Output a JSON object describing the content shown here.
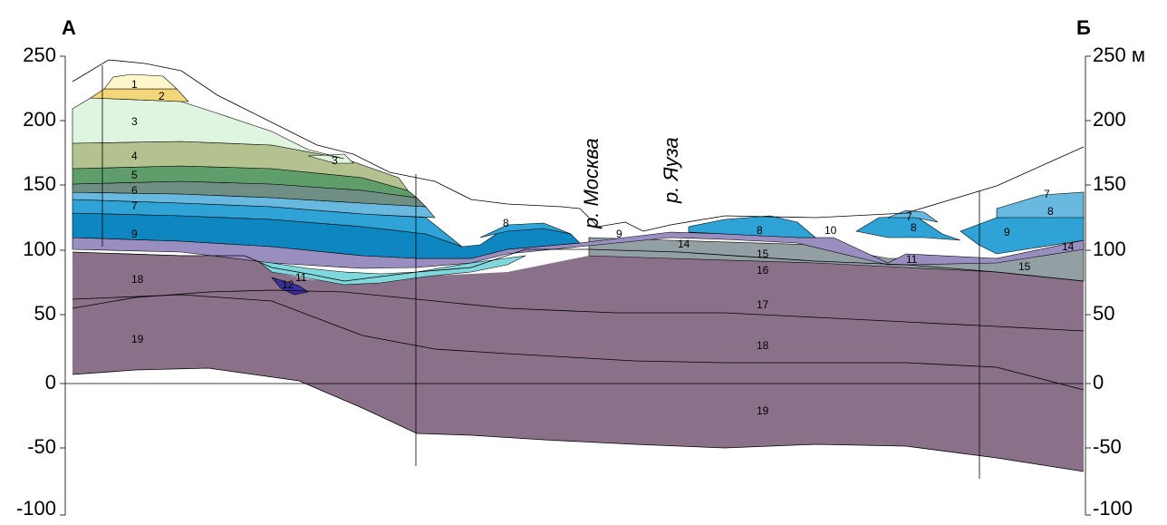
{
  "endpoints": {
    "start": "А",
    "end": "Б"
  },
  "rivers": [
    "р. Москва",
    "р. Яуза"
  ],
  "left_axis": [
    "250",
    "200",
    "150",
    "100",
    "50",
    "0",
    "-50",
    "-100"
  ],
  "right_axis": [
    "250 м",
    "200",
    "150",
    "100",
    "50",
    "0",
    "-50",
    "-100"
  ],
  "layer_numbers": [
    "1",
    "2",
    "3",
    "3",
    "4",
    "5",
    "6",
    "7",
    "9",
    "8",
    "9",
    "10",
    "8",
    "7",
    "8",
    "9",
    "7",
    "8",
    "9",
    "14",
    "14",
    "15",
    "15",
    "16",
    "11",
    "11",
    "12",
    "18",
    "19",
    "17",
    "18",
    "19"
  ],
  "colors": {
    "l1": "#fff6cc",
    "l2": "#f3d57a",
    "l3": "#e0f5e0",
    "l4": "#b4c28f",
    "l5": "#5f9e6a",
    "l6": "#6f8f84",
    "l7": "#69b8df",
    "l8": "#2fa2d6",
    "l9": "#0e86c0",
    "l10": "#9a8dc0",
    "l11": "#80d7dc",
    "l12": "#3a2f9a",
    "l14": "#8c8c98",
    "l15": "#92a0a4",
    "l17": "#8b7089",
    "outline": "#000000"
  }
}
